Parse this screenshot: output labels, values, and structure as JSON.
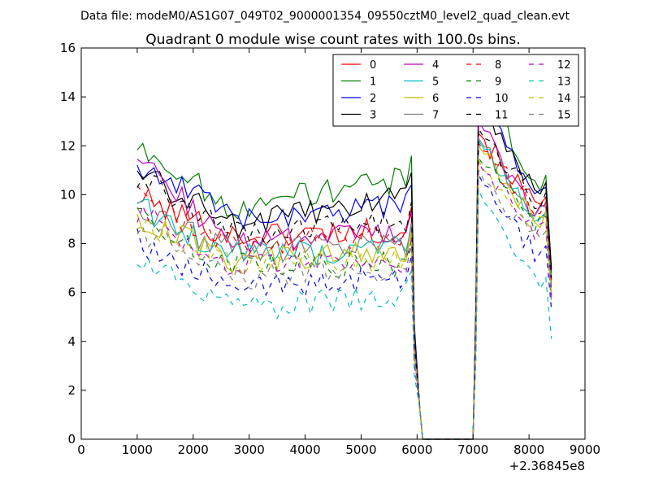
{
  "figure": {
    "suptitle": "Data file: modeM0/AS1G07_049T02_9000001354_09550cztM0_level2_quad_clean.evt"
  },
  "chart_data": {
    "type": "line",
    "title": "Quadrant 0 module wise count rates with 100.0s bins.",
    "xlabel": "",
    "ylabel": "",
    "x_offset_label": "+2.36845e8",
    "xlim": [
      0,
      9000
    ],
    "ylim": [
      0,
      16
    ],
    "xticks": [
      0,
      1000,
      2000,
      3000,
      4000,
      5000,
      6000,
      7000,
      8000,
      9000
    ],
    "yticks": [
      0,
      2,
      4,
      6,
      8,
      10,
      12,
      14,
      16
    ],
    "grid": false,
    "legend_position": "top-right",
    "legend_columns": 4,
    "x_range": {
      "start": 1000,
      "end": 8400,
      "step": 100
    },
    "gap": {
      "drop_start": 5900,
      "zero_from": 6100,
      "zero_to": 7000,
      "rise_end": 7100
    },
    "series": [
      {
        "name": "0",
        "color": "#ff0000",
        "style": "solid",
        "level_start": 9.9,
        "level_mid": 8.3,
        "level_pre_gap": 8.6,
        "peak": 12.5,
        "level_end": 9.6,
        "last": 6.5
      },
      {
        "name": "1",
        "color": "#008000",
        "style": "solid",
        "level_start": 12.0,
        "level_mid": 9.5,
        "level_pre_gap": 10.7,
        "peak": 15.0,
        "level_end": 10.5,
        "last": 6.8
      },
      {
        "name": "2",
        "color": "#0000ff",
        "style": "solid",
        "level_start": 11.3,
        "level_mid": 9.1,
        "level_pre_gap": 9.5,
        "peak": 13.8,
        "level_end": 10.0,
        "last": 6.9
      },
      {
        "name": "3",
        "color": "#000000",
        "style": "solid",
        "level_start": 11.0,
        "level_mid": 8.7,
        "level_pre_gap": 10.0,
        "peak": 13.7,
        "level_end": 10.2,
        "last": 7.0
      },
      {
        "name": "4",
        "color": "#bf00bf",
        "style": "solid",
        "level_start": 11.4,
        "level_mid": 8.0,
        "level_pre_gap": 8.4,
        "peak": 13.0,
        "level_end": 9.2,
        "last": 5.8
      },
      {
        "name": "5",
        "color": "#00bfbf",
        "style": "solid",
        "level_start": 9.5,
        "level_mid": 7.5,
        "level_pre_gap": 7.8,
        "peak": 12.2,
        "level_end": 9.0,
        "last": 6.3
      },
      {
        "name": "6",
        "color": "#bfbf00",
        "style": "solid",
        "level_start": 9.0,
        "level_mid": 7.3,
        "level_pre_gap": 7.6,
        "peak": 12.0,
        "level_end": 9.0,
        "last": 6.0
      },
      {
        "name": "7",
        "color": "#808080",
        "style": "solid",
        "level_start": 9.2,
        "level_mid": 7.7,
        "level_pre_gap": 8.0,
        "peak": 12.3,
        "level_end": 9.3,
        "last": 6.2
      },
      {
        "name": "8",
        "color": "#ff0000",
        "style": "dashed",
        "level_start": 10.0,
        "level_mid": 8.0,
        "level_pre_gap": 8.3,
        "peak": 12.1,
        "level_end": 9.4,
        "last": 6.4
      },
      {
        "name": "9",
        "color": "#008000",
        "style": "dashed",
        "level_start": 9.0,
        "level_mid": 7.1,
        "level_pre_gap": 7.2,
        "peak": 11.5,
        "level_end": 8.8,
        "last": 6.1
      },
      {
        "name": "10",
        "color": "#0000ff",
        "style": "dashed",
        "level_start": 8.1,
        "level_mid": 6.2,
        "level_pre_gap": 6.6,
        "peak": 10.8,
        "level_end": 7.6,
        "last": 5.3
      },
      {
        "name": "11",
        "color": "#000000",
        "style": "dashed",
        "level_start": 10.8,
        "level_mid": 8.4,
        "level_pre_gap": 8.8,
        "peak": 12.7,
        "level_end": 9.8,
        "last": 6.6
      },
      {
        "name": "12",
        "color": "#bf00bf",
        "style": "dashed",
        "level_start": 9.3,
        "level_mid": 7.0,
        "level_pre_gap": 7.3,
        "peak": 11.3,
        "level_end": 8.6,
        "last": 5.9
      },
      {
        "name": "13",
        "color": "#00bfbf",
        "style": "dashed",
        "level_start": 7.5,
        "level_mid": 5.3,
        "level_pre_gap": 6.0,
        "peak": 10.2,
        "level_end": 6.3,
        "last": 4.1
      },
      {
        "name": "14",
        "color": "#bfbf00",
        "style": "dashed",
        "level_start": 8.9,
        "level_mid": 7.2,
        "level_pre_gap": 7.4,
        "peak": 11.4,
        "level_end": 8.7,
        "last": 6.0
      },
      {
        "name": "15",
        "color": "#808080",
        "style": "dashed",
        "level_start": 8.6,
        "level_mid": 6.6,
        "level_pre_gap": 7.0,
        "peak": 11.0,
        "level_end": 8.2,
        "last": 5.6
      }
    ]
  }
}
